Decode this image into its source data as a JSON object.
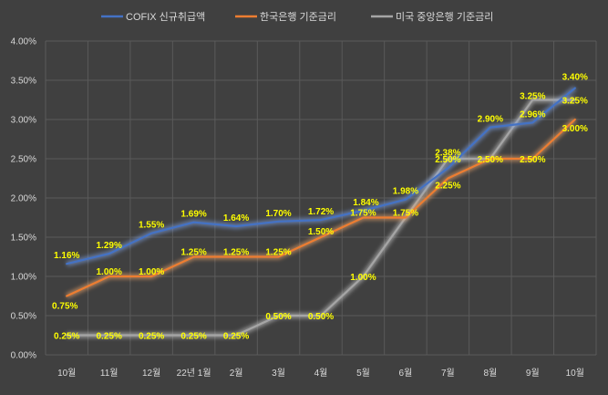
{
  "chart_data": {
    "type": "line",
    "categories": [
      "10월",
      "11월",
      "12월",
      "22년 1월",
      "2월",
      "3월",
      "4월",
      "5월",
      "6월",
      "7월",
      "8월",
      "9월",
      "10월"
    ],
    "ylim": [
      0,
      4
    ],
    "y_tick_labels": [
      "0.00%",
      "0.50%",
      "1.00%",
      "1.50%",
      "2.00%",
      "2.50%",
      "3.00%",
      "3.50%",
      "4.00%"
    ],
    "grid": true,
    "legend_position": "top",
    "series": [
      {
        "name": "COFIX 신규취급액",
        "color": "#4472c4",
        "values": [
          1.16,
          1.29,
          1.55,
          1.69,
          1.64,
          1.7,
          1.72,
          1.84,
          1.98,
          2.38,
          2.9,
          2.96,
          3.4
        ],
        "labels": [
          "1.16%",
          "1.29%",
          "1.55%",
          "1.69%",
          "1.64%",
          "1.70%",
          "1.72%",
          "1.84%",
          "1.98%",
          "2.38%",
          "2.90%",
          "2.96%",
          "3.40%"
        ]
      },
      {
        "name": "한국은행 기준금리",
        "color": "#ed7d31",
        "values": [
          0.75,
          1.0,
          1.0,
          1.25,
          1.25,
          1.25,
          1.5,
          1.75,
          1.75,
          2.25,
          2.5,
          2.5,
          3.0
        ],
        "labels": [
          "0.75%",
          "1.00%",
          "1.00%",
          "1.25%",
          "1.25%",
          "1.25%",
          "1.50%",
          "1.75%",
          "1.75%",
          "2.25%",
          "2.50%",
          "2.50%",
          "3.00%"
        ]
      },
      {
        "name": "미국 중앙은행 기준금리",
        "color": "#a5a5a5",
        "values": [
          0.25,
          0.25,
          0.25,
          0.25,
          0.25,
          0.5,
          0.5,
          1.0,
          1.75,
          2.5,
          2.5,
          3.25,
          3.25
        ],
        "labels": [
          "0.25%",
          "0.25%",
          "0.25%",
          "0.25%",
          "0.25%",
          "0.50%",
          "0.50%",
          "1.00%",
          "",
          "2.50%",
          "",
          "3.25%",
          "3.25%"
        ]
      }
    ]
  }
}
